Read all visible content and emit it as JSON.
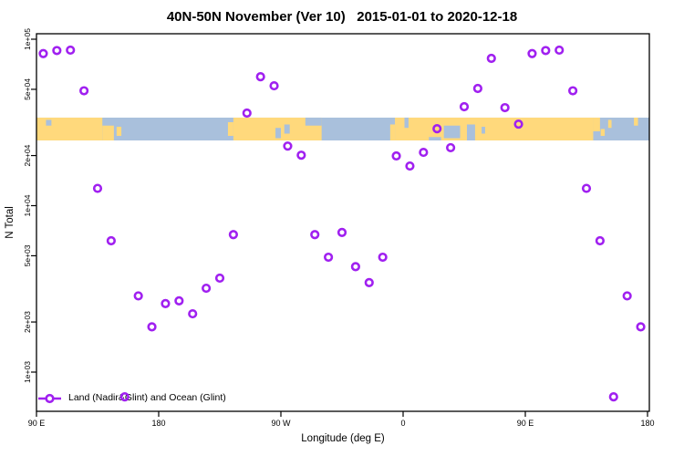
{
  "title": "40N-50N November (Ver 10)   2015-01-01 to 2020-12-18",
  "colors": {
    "marker": "#A020F0",
    "land": "#FFD97C",
    "ocean": "#A9C0DC",
    "axis": "#000000"
  },
  "chart_data": {
    "type": "scatter",
    "title": "40N-50N November (Ver 10)   2015-01-01 to 2020-12-18",
    "xlabel": "Longitude (deg E)",
    "ylabel": "N Total",
    "x_scale": "linear-wrapped-longitude",
    "y_scale": "log10",
    "xlim_deg_east": [
      90,
      541.3
    ],
    "ylim": [
      580,
      108000
    ],
    "grid": false,
    "x_ticks": [
      {
        "lon": 90,
        "label": "90 E"
      },
      {
        "lon": 180,
        "label": "180"
      },
      {
        "lon": 270,
        "label": "90 W"
      },
      {
        "lon": 360,
        "label": "0"
      },
      {
        "lon": 450,
        "label": "90 E"
      },
      {
        "lon": 540,
        "label": "180"
      }
    ],
    "y_ticks": [
      {
        "value": 100000,
        "label": "1e+05"
      },
      {
        "value": 50000,
        "label": "5e+04"
      },
      {
        "value": 20000,
        "label": "2e+04"
      },
      {
        "value": 10000,
        "label": "1e+04"
      },
      {
        "value": 5000,
        "label": "5e+03"
      },
      {
        "value": 2000,
        "label": "2e+03"
      },
      {
        "value": 1000,
        "label": "1e+03"
      }
    ],
    "legend": {
      "position": "bottom-left-inside",
      "label": "Land (Nadir&Glint) and Ocean (Glint)"
    },
    "series": [
      {
        "name": "Land (Nadir&Glint) and Ocean (Glint)",
        "marker": "open-circle",
        "points": [
          {
            "lon": 95,
            "n": 82000
          },
          {
            "lon": 105,
            "n": 85500
          },
          {
            "lon": 115,
            "n": 86000
          },
          {
            "lon": 125,
            "n": 49000
          },
          {
            "lon": 135,
            "n": 12700
          },
          {
            "lon": 145,
            "n": 6150
          },
          {
            "lon": 155,
            "n": 710
          },
          {
            "lon": 165,
            "n": 2870
          },
          {
            "lon": 175,
            "n": 1870
          },
          {
            "lon": 185,
            "n": 2580
          },
          {
            "lon": 195,
            "n": 2680
          },
          {
            "lon": 205,
            "n": 2240
          },
          {
            "lon": 215,
            "n": 3190
          },
          {
            "lon": 225,
            "n": 3670
          },
          {
            "lon": 235,
            "n": 6700
          },
          {
            "lon": 245,
            "n": 36000
          },
          {
            "lon": 255,
            "n": 59500
          },
          {
            "lon": 265,
            "n": 52500
          },
          {
            "lon": 275,
            "n": 22800
          },
          {
            "lon": 285,
            "n": 20100
          },
          {
            "lon": 295,
            "n": 6700
          },
          {
            "lon": 305,
            "n": 4900
          },
          {
            "lon": 315,
            "n": 6900
          },
          {
            "lon": 325,
            "n": 4300
          },
          {
            "lon": 335,
            "n": 3450
          },
          {
            "lon": 345,
            "n": 4900
          },
          {
            "lon": 355,
            "n": 19900
          },
          {
            "lon": 365,
            "n": 17300
          },
          {
            "lon": 375,
            "n": 20900
          },
          {
            "lon": 385,
            "n": 29000
          },
          {
            "lon": 395,
            "n": 22300
          },
          {
            "lon": 405,
            "n": 39300
          },
          {
            "lon": 415,
            "n": 50600
          },
          {
            "lon": 425,
            "n": 76700
          },
          {
            "lon": 435,
            "n": 38800
          },
          {
            "lon": 445,
            "n": 30900
          },
          {
            "lon": 455,
            "n": 82000
          },
          {
            "lon": 465,
            "n": 85500
          },
          {
            "lon": 475,
            "n": 86000
          },
          {
            "lon": 485,
            "n": 49000
          },
          {
            "lon": 495,
            "n": 12700
          },
          {
            "lon": 505,
            "n": 6150
          },
          {
            "lon": 515,
            "n": 710
          },
          {
            "lon": 525,
            "n": 2870
          },
          {
            "lon": 535,
            "n": 1870
          }
        ]
      }
    ],
    "map_band": {
      "description": "40N-50N coastline strip (land/ocean)",
      "top_value": 33800,
      "bottom_value": 24650,
      "land_segments": [
        {
          "x0": 90,
          "x1": 138.5,
          "y0": 0,
          "y1": 1
        },
        {
          "x0": 138.5,
          "x1": 147,
          "y0": 0.35,
          "y1": 1
        },
        {
          "x0": 149,
          "x1": 152.5,
          "y0": 0.4,
          "y1": 0.8
        },
        {
          "x0": 231,
          "x1": 235,
          "y0": 0.2,
          "y1": 0.8
        },
        {
          "x0": 235,
          "x1": 300,
          "y0": 0,
          "y1": 1
        },
        {
          "x0": 350.5,
          "x1": 354,
          "y0": 0.3,
          "y1": 1
        },
        {
          "x0": 354,
          "x1": 500,
          "y0": 0,
          "y1": 1
        },
        {
          "x0": 500,
          "x1": 505,
          "y0": 0,
          "y1": 0.6
        },
        {
          "x0": 505.5,
          "x1": 508.5,
          "y0": 0.5,
          "y1": 0.8
        },
        {
          "x0": 511,
          "x1": 513.5,
          "y0": 0.1,
          "y1": 0.45
        },
        {
          "x0": 530,
          "x1": 533,
          "y0": 0,
          "y1": 0.35
        }
      ],
      "water_overlays": [
        {
          "x0": 97,
          "x1": 101,
          "y0": 0.1,
          "y1": 0.35
        },
        {
          "x0": 266,
          "x1": 270,
          "y0": 0.45,
          "y1": 0.9
        },
        {
          "x0": 272.5,
          "x1": 276.5,
          "y0": 0.3,
          "y1": 0.7
        },
        {
          "x0": 288,
          "x1": 300,
          "y0": 0,
          "y1": 0.35
        },
        {
          "x0": 361,
          "x1": 364,
          "y0": 0,
          "y1": 0.45
        },
        {
          "x0": 379,
          "x1": 388,
          "y0": 0.85,
          "y1": 1
        },
        {
          "x0": 390,
          "x1": 402,
          "y0": 0.35,
          "y1": 0.9
        },
        {
          "x0": 407,
          "x1": 413,
          "y0": 0.3,
          "y1": 1
        },
        {
          "x0": 417.8,
          "x1": 420.4,
          "y0": 0.4,
          "y1": 0.7
        }
      ]
    }
  }
}
